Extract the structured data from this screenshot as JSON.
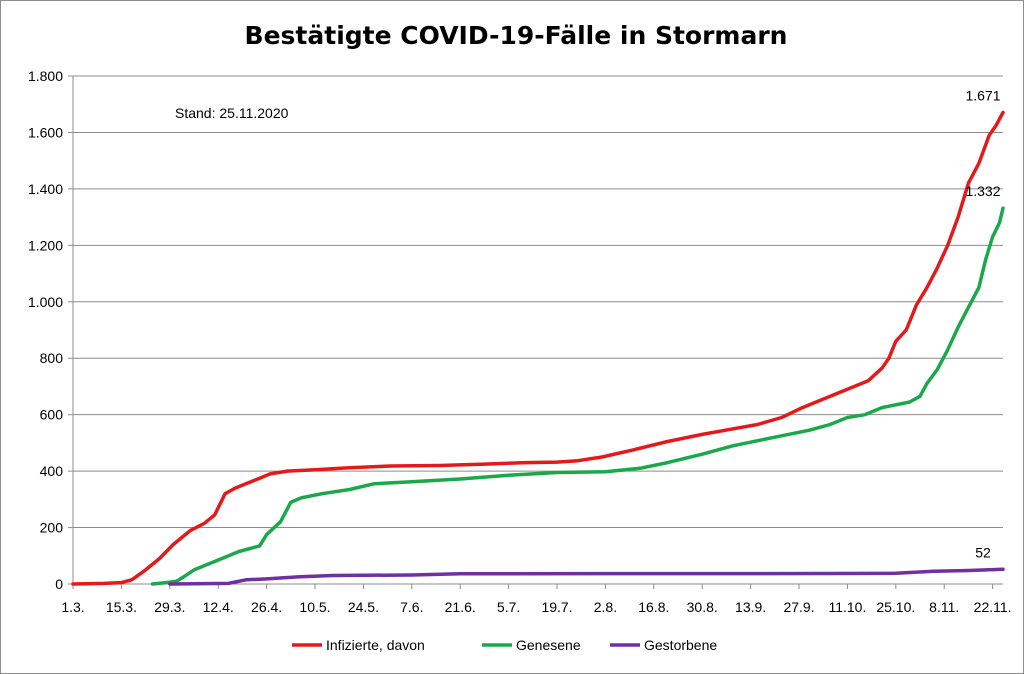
{
  "chart_data": {
    "type": "line",
    "title": "Bestätigte COVID-19-Fälle in Stormarn",
    "annotation": "Stand: 25.11.2020",
    "xlabel": "",
    "ylabel": "",
    "ylim": [
      0,
      1800
    ],
    "y_ticks": [
      0,
      200,
      400,
      600,
      800,
      1000,
      1200,
      1400,
      1600,
      1800
    ],
    "y_tick_labels": [
      "0",
      "200",
      "400",
      "600",
      "800",
      "1.000",
      "1.200",
      "1.400",
      "1.600",
      "1.800"
    ],
    "x_range": [
      "2020-03-01",
      "2020-11-25"
    ],
    "x_ticks": [
      "2020-03-01",
      "2020-03-15",
      "2020-03-29",
      "2020-04-12",
      "2020-04-26",
      "2020-05-10",
      "2020-05-24",
      "2020-06-07",
      "2020-06-21",
      "2020-07-05",
      "2020-07-19",
      "2020-08-02",
      "2020-08-16",
      "2020-08-30",
      "2020-09-13",
      "2020-09-27",
      "2020-10-11",
      "2020-10-25",
      "2020-11-08",
      "2020-11-22"
    ],
    "x_tick_labels": [
      "1.3.",
      "15.3.",
      "29.3.",
      "12.4.",
      "26.4.",
      "10.5.",
      "24.5.",
      "7.6.",
      "21.6.",
      "5.7.",
      "19.7.",
      "2.8.",
      "16.8.",
      "30.8.",
      "13.9.",
      "27.9.",
      "11.10.",
      "25.10.",
      "8.11.",
      "22.11."
    ],
    "grid": "horizontal",
    "legend_position": "bottom",
    "series": [
      {
        "name": "Infizierte, davon",
        "color": "#e31a1c",
        "end_label": "1.671",
        "points": [
          [
            "2020-03-01",
            0
          ],
          [
            "2020-03-10",
            2
          ],
          [
            "2020-03-15",
            5
          ],
          [
            "2020-03-18",
            15
          ],
          [
            "2020-03-22",
            50
          ],
          [
            "2020-03-26",
            90
          ],
          [
            "2020-03-30",
            140
          ],
          [
            "2020-04-04",
            190
          ],
          [
            "2020-04-08",
            215
          ],
          [
            "2020-04-11",
            245
          ],
          [
            "2020-04-14",
            320
          ],
          [
            "2020-04-17",
            340
          ],
          [
            "2020-04-20",
            355
          ],
          [
            "2020-04-24",
            375
          ],
          [
            "2020-04-27",
            390
          ],
          [
            "2020-05-02",
            400
          ],
          [
            "2020-05-10",
            405
          ],
          [
            "2020-05-20",
            412
          ],
          [
            "2020-06-01",
            418
          ],
          [
            "2020-06-15",
            420
          ],
          [
            "2020-06-28",
            425
          ],
          [
            "2020-07-10",
            430
          ],
          [
            "2020-07-19",
            432
          ],
          [
            "2020-07-25",
            437
          ],
          [
            "2020-08-01",
            450
          ],
          [
            "2020-08-10",
            475
          ],
          [
            "2020-08-20",
            505
          ],
          [
            "2020-08-30",
            530
          ],
          [
            "2020-09-08",
            550
          ],
          [
            "2020-09-15",
            565
          ],
          [
            "2020-09-22",
            590
          ],
          [
            "2020-09-28",
            625
          ],
          [
            "2020-10-04",
            655
          ],
          [
            "2020-10-11",
            690
          ],
          [
            "2020-10-17",
            720
          ],
          [
            "2020-10-21",
            765
          ],
          [
            "2020-10-23",
            800
          ],
          [
            "2020-10-25",
            860
          ],
          [
            "2020-10-28",
            900
          ],
          [
            "2020-10-31",
            990
          ],
          [
            "2020-11-03",
            1050
          ],
          [
            "2020-11-06",
            1120
          ],
          [
            "2020-11-09",
            1200
          ],
          [
            "2020-11-12",
            1300
          ],
          [
            "2020-11-15",
            1420
          ],
          [
            "2020-11-18",
            1490
          ],
          [
            "2020-11-21",
            1590
          ],
          [
            "2020-11-23",
            1625
          ],
          [
            "2020-11-25",
            1671
          ]
        ]
      },
      {
        "name": "Genesene",
        "color": "#1aa84b",
        "end_label": "1.332",
        "points": [
          [
            "2020-03-24",
            0
          ],
          [
            "2020-03-28",
            5
          ],
          [
            "2020-03-31",
            10
          ],
          [
            "2020-04-02",
            25
          ],
          [
            "2020-04-05",
            50
          ],
          [
            "2020-04-09",
            70
          ],
          [
            "2020-04-13",
            90
          ],
          [
            "2020-04-18",
            115
          ],
          [
            "2020-04-24",
            135
          ],
          [
            "2020-04-26",
            175
          ],
          [
            "2020-04-30",
            220
          ],
          [
            "2020-05-03",
            290
          ],
          [
            "2020-05-06",
            305
          ],
          [
            "2020-05-12",
            320
          ],
          [
            "2020-05-20",
            335
          ],
          [
            "2020-05-27",
            355
          ],
          [
            "2020-06-07",
            362
          ],
          [
            "2020-06-21",
            372
          ],
          [
            "2020-07-05",
            385
          ],
          [
            "2020-07-19",
            395
          ],
          [
            "2020-08-02",
            398
          ],
          [
            "2020-08-12",
            410
          ],
          [
            "2020-08-20",
            430
          ],
          [
            "2020-08-30",
            460
          ],
          [
            "2020-09-08",
            490
          ],
          [
            "2020-09-20",
            520
          ],
          [
            "2020-09-30",
            545
          ],
          [
            "2020-10-06",
            565
          ],
          [
            "2020-10-11",
            590
          ],
          [
            "2020-10-16",
            600
          ],
          [
            "2020-10-21",
            625
          ],
          [
            "2020-10-29",
            645
          ],
          [
            "2020-11-01",
            665
          ],
          [
            "2020-11-03",
            710
          ],
          [
            "2020-11-06",
            760
          ],
          [
            "2020-11-09",
            830
          ],
          [
            "2020-11-12",
            910
          ],
          [
            "2020-11-15",
            980
          ],
          [
            "2020-11-18",
            1050
          ],
          [
            "2020-11-20",
            1150
          ],
          [
            "2020-11-22",
            1230
          ],
          [
            "2020-11-24",
            1280
          ],
          [
            "2020-11-25",
            1332
          ]
        ]
      },
      {
        "name": "Gestorbene",
        "color": "#7030a0",
        "end_label": "52",
        "points": [
          [
            "2020-03-29",
            0
          ],
          [
            "2020-04-15",
            2
          ],
          [
            "2020-04-20",
            15
          ],
          [
            "2020-04-26",
            18
          ],
          [
            "2020-05-05",
            25
          ],
          [
            "2020-05-15",
            30
          ],
          [
            "2020-06-07",
            32
          ],
          [
            "2020-06-21",
            36
          ],
          [
            "2020-08-01",
            37
          ],
          [
            "2020-09-15",
            37
          ],
          [
            "2020-10-25",
            38
          ],
          [
            "2020-11-05",
            45
          ],
          [
            "2020-11-15",
            48
          ],
          [
            "2020-11-25",
            52
          ]
        ]
      }
    ]
  }
}
